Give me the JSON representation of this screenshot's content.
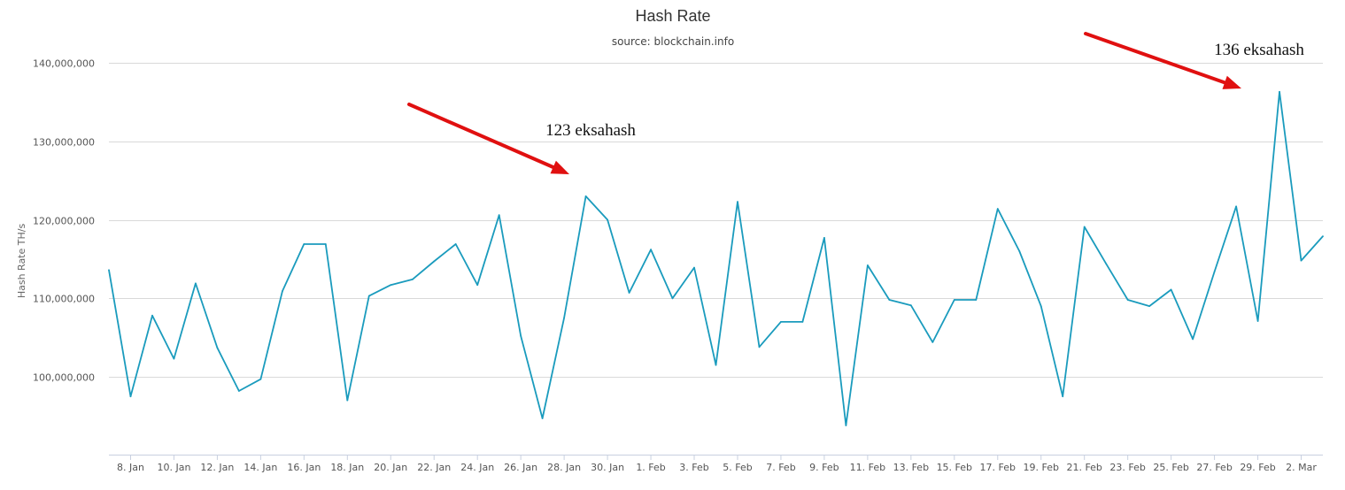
{
  "chart_data": {
    "type": "line",
    "title": "Hash Rate",
    "subtitle": "source: blockchain.info",
    "ylabel": "Hash Rate TH/s",
    "xlabel": "",
    "ylim": [
      90000000,
      145000000
    ],
    "yticks": [
      100000000,
      110000000,
      120000000,
      130000000,
      140000000
    ],
    "ytick_labels": [
      "100,000,000",
      "110,000,000",
      "120,000,000",
      "130,000,000",
      "140,000,000"
    ],
    "xlim": [
      "2016-01-07",
      "2016-03-03"
    ],
    "xtick_dates": [
      "2016-01-08",
      "2016-01-10",
      "2016-01-12",
      "2016-01-14",
      "2016-01-16",
      "2016-01-18",
      "2016-01-20",
      "2016-01-22",
      "2016-01-24",
      "2016-01-26",
      "2016-01-28",
      "2016-01-30",
      "2016-02-01",
      "2016-02-03",
      "2016-02-05",
      "2016-02-07",
      "2016-02-09",
      "2016-02-11",
      "2016-02-13",
      "2016-02-15",
      "2016-02-17",
      "2016-02-19",
      "2016-02-21",
      "2016-02-23",
      "2016-02-25",
      "2016-02-27",
      "2016-02-29",
      "2016-03-02"
    ],
    "xtick_labels": [
      "8. Jan",
      "10. Jan",
      "12. Jan",
      "14. Jan",
      "16. Jan",
      "18. Jan",
      "20. Jan",
      "22. Jan",
      "24. Jan",
      "26. Jan",
      "28. Jan",
      "30. Jan",
      "1. Feb",
      "3. Feb",
      "5. Feb",
      "7. Feb",
      "9. Feb",
      "11. Feb",
      "13. Feb",
      "15. Feb",
      "17. Feb",
      "19. Feb",
      "21. Feb",
      "23. Feb",
      "25. Feb",
      "27. Feb",
      "29. Feb",
      "2. Mar"
    ],
    "grid": true,
    "legend": "none",
    "color": "#1a9bbd",
    "series": [
      {
        "x": [
          "2016-01-07",
          "2016-01-08",
          "2016-01-09",
          "2016-01-10",
          "2016-01-11",
          "2016-01-12",
          "2016-01-13",
          "2016-01-14",
          "2016-01-15",
          "2016-01-16",
          "2016-01-17",
          "2016-01-18",
          "2016-01-19",
          "2016-01-20",
          "2016-01-21",
          "2016-01-22",
          "2016-01-23",
          "2016-01-24",
          "2016-01-25",
          "2016-01-26",
          "2016-01-27",
          "2016-01-28",
          "2016-01-29",
          "2016-01-30",
          "2016-01-31",
          "2016-02-01",
          "2016-02-02",
          "2016-02-03",
          "2016-02-04",
          "2016-02-05",
          "2016-02-06",
          "2016-02-07",
          "2016-02-08",
          "2016-02-09",
          "2016-02-10",
          "2016-02-11",
          "2016-02-12",
          "2016-02-13",
          "2016-02-14",
          "2016-02-15",
          "2016-02-16",
          "2016-02-17",
          "2016-02-18",
          "2016-02-19",
          "2016-02-20",
          "2016-02-21",
          "2016-02-22",
          "2016-02-23",
          "2016-02-24",
          "2016-02-25",
          "2016-02-26",
          "2016-02-27",
          "2016-02-28",
          "2016-02-29",
          "2016-03-01",
          "2016-03-02",
          "2016-03-03"
        ],
        "values": [
          113600000,
          97500000,
          107800000,
          102300000,
          111900000,
          103700000,
          98200000,
          99700000,
          110900000,
          116900000,
          116900000,
          97000000,
          110300000,
          111700000,
          112400000,
          114700000,
          116900000,
          111700000,
          120600000,
          105200000,
          94700000,
          107500000,
          123000000,
          120000000,
          110700000,
          116200000,
          110000000,
          113900000,
          101500000,
          122300000,
          103800000,
          107000000,
          107000000,
          117700000,
          93800000,
          114200000,
          109800000,
          109100000,
          104400000,
          109800000,
          109800000,
          121400000,
          116000000,
          109000000,
          97500000,
          119100000,
          114400000,
          109800000,
          109000000,
          111100000,
          104800000,
          113400000,
          121700000,
          107100000,
          136300000,
          114800000,
          117900000
        ]
      }
    ],
    "annotations": [
      {
        "text": "123 eksahash",
        "x": "2016-01-29",
        "y": 123000000
      },
      {
        "text": "136 eksahash",
        "x": "2016-03-01",
        "y": 136300000
      }
    ],
    "arrow_color": "#e01010"
  }
}
